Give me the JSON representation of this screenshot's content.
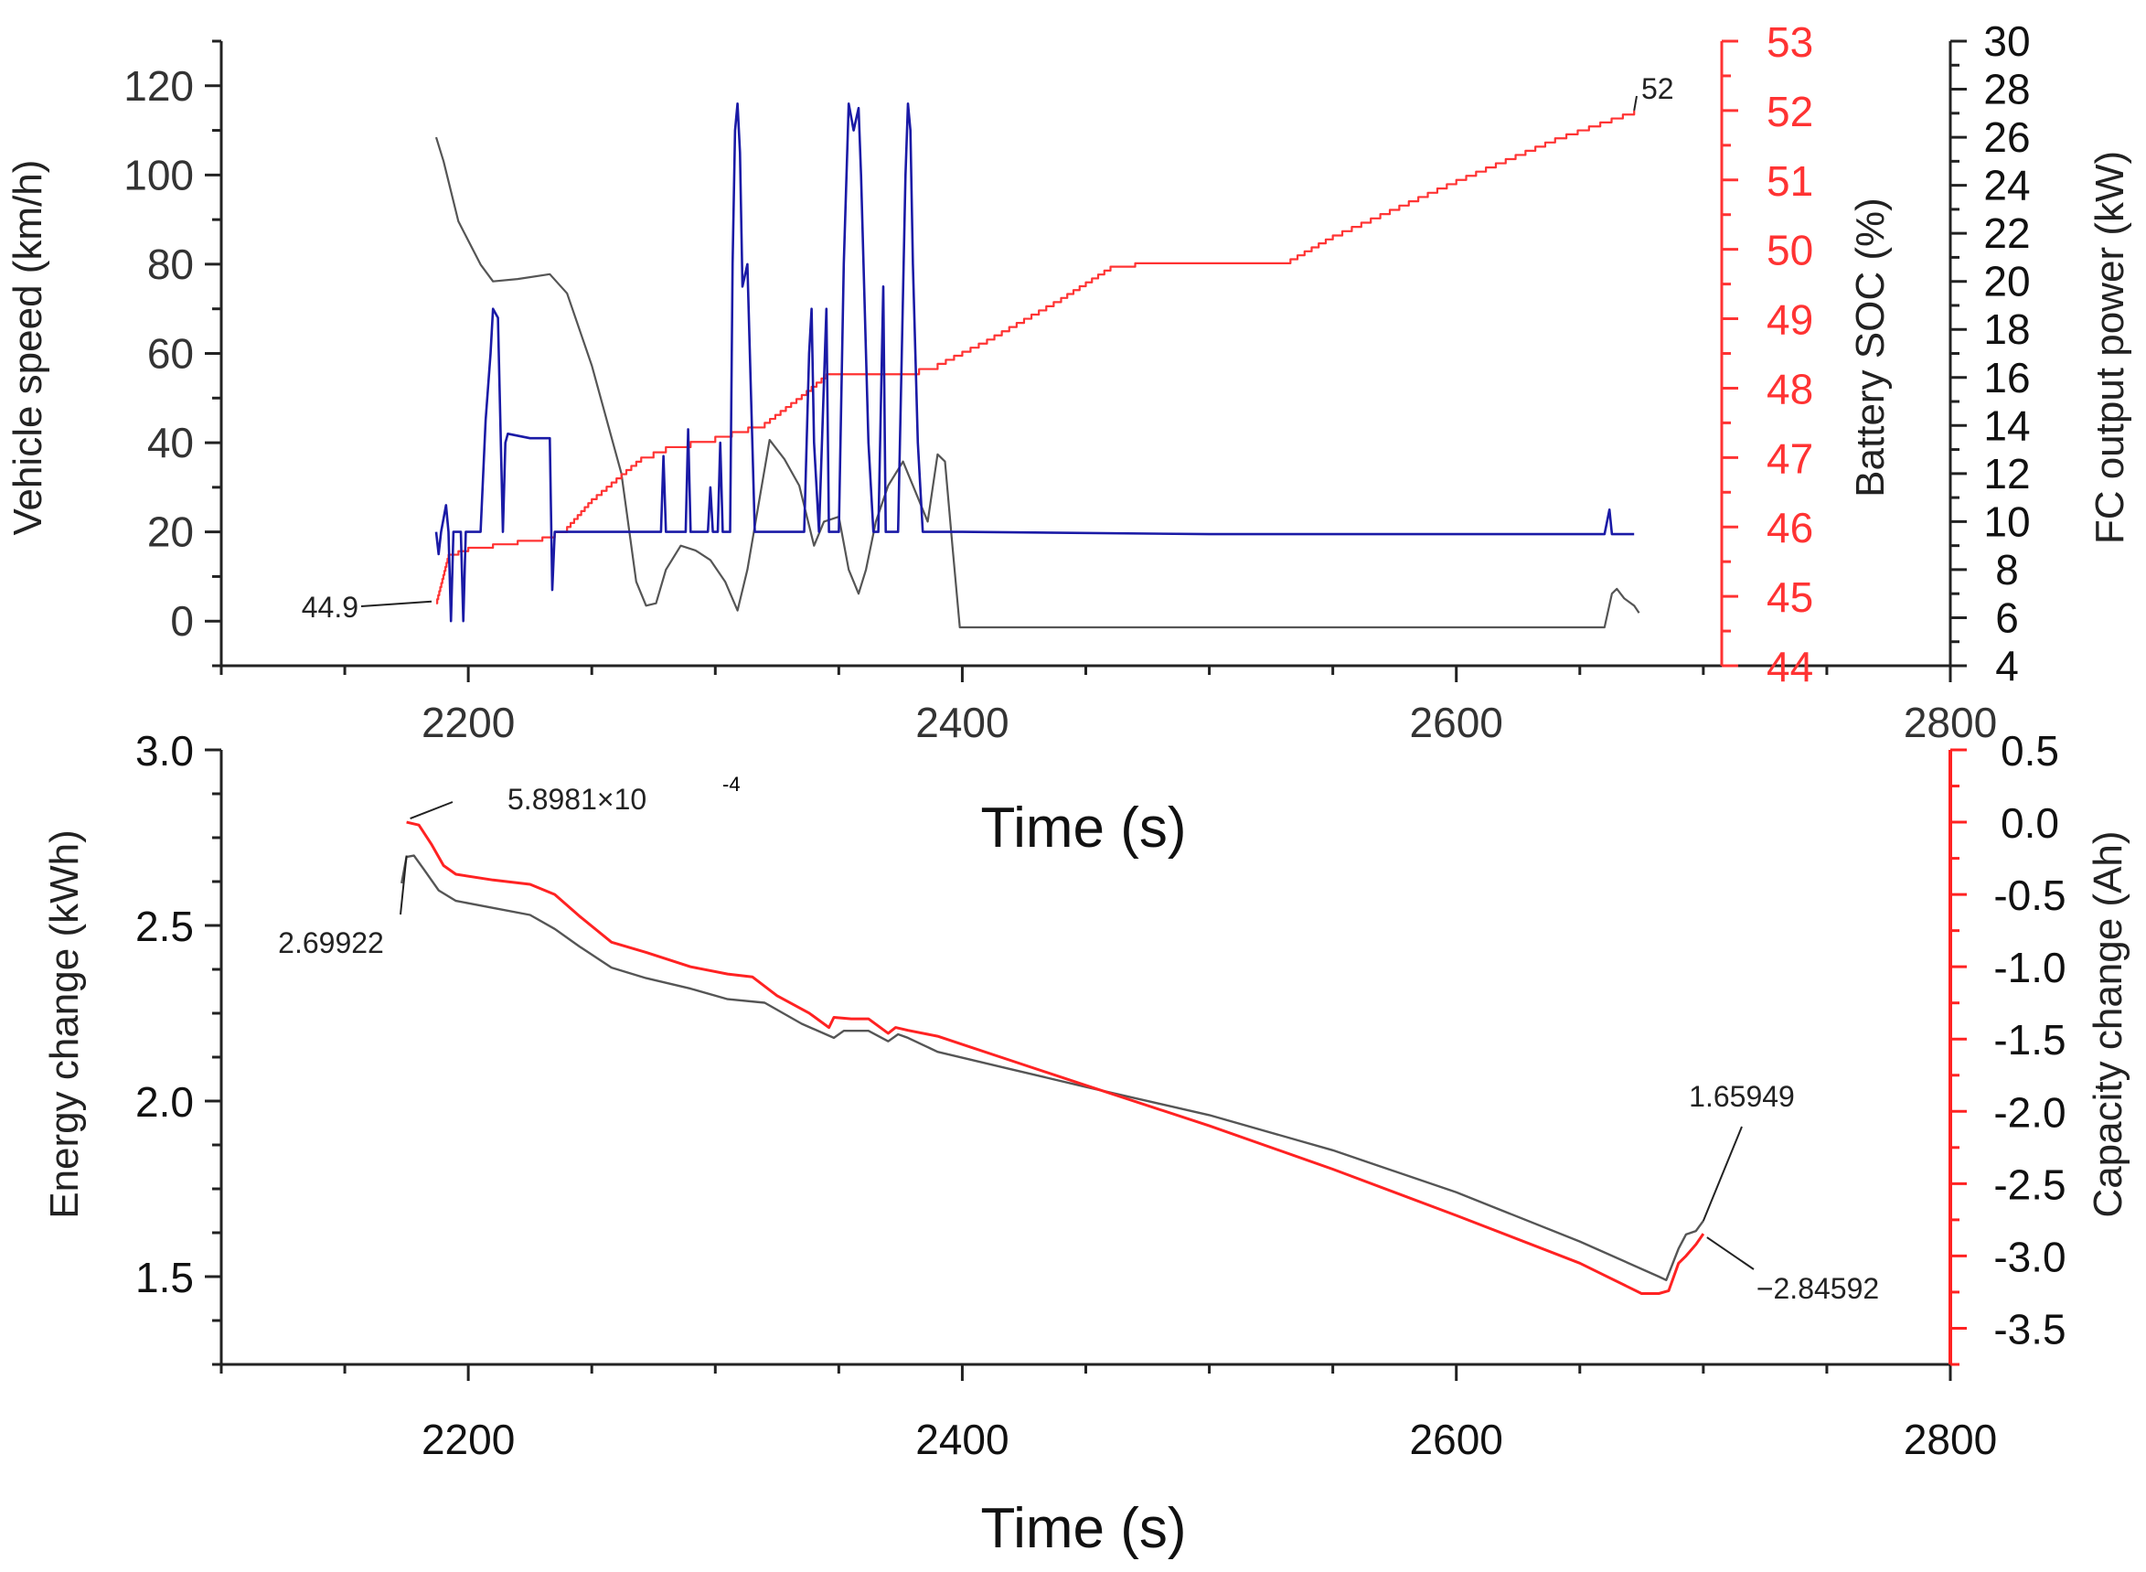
{
  "chart_data": [
    {
      "type": "line",
      "panel": "top",
      "title": "",
      "xlabel": "Time (s)",
      "xlim": [
        2100,
        2800
      ],
      "xticks": [
        2200,
        2400,
        2600,
        2800
      ],
      "axes": {
        "speed": {
          "label": "Vehicle speed (km/h)",
          "lim": [
            -10,
            130
          ],
          "ticks": [
            0,
            20,
            40,
            60,
            80,
            100,
            120
          ],
          "color": "#333333"
        },
        "soc": {
          "label": "Battery SOC (%)",
          "lim": [
            44,
            53
          ],
          "ticks": [
            44,
            45,
            46,
            47,
            48,
            49,
            50,
            51,
            52,
            53
          ],
          "color": "#ff3333"
        },
        "fc": {
          "label": "FC output power (kW)",
          "lim": [
            4,
            30
          ],
          "ticks": [
            4,
            6,
            8,
            10,
            12,
            14,
            16,
            18,
            20,
            22,
            24,
            26,
            28,
            30
          ],
          "color": "#222222"
        }
      },
      "series": [
        {
          "name": "FC output power",
          "axis": "fc",
          "color": "#555555",
          "points": [
            [
              2187,
              26
            ],
            [
              2190,
              25
            ],
            [
              2196,
              22.5
            ],
            [
              2205,
              20.7
            ],
            [
              2210,
              20
            ],
            [
              2220,
              20.1
            ],
            [
              2233,
              20.3
            ],
            [
              2240,
              19.5
            ],
            [
              2250,
              16.5
            ],
            [
              2262,
              12
            ],
            [
              2268,
              7.5
            ],
            [
              2272,
              6.5
            ],
            [
              2276,
              6.6
            ],
            [
              2280,
              8
            ],
            [
              2286,
              9
            ],
            [
              2292,
              8.8
            ],
            [
              2298,
              8.4
            ],
            [
              2304,
              7.5
            ],
            [
              2309,
              6.3
            ],
            [
              2313,
              8
            ],
            [
              2318,
              11
            ],
            [
              2322,
              13.4
            ],
            [
              2328,
              12.6
            ],
            [
              2334,
              11.5
            ],
            [
              2340,
              9
            ],
            [
              2344,
              10
            ],
            [
              2350,
              10.2
            ],
            [
              2354,
              8
            ],
            [
              2358,
              7
            ],
            [
              2361,
              8
            ],
            [
              2365,
              10
            ],
            [
              2370,
              11.5
            ],
            [
              2376,
              12.5
            ],
            [
              2382,
              11
            ],
            [
              2386,
              10
            ],
            [
              2390,
              12.8
            ],
            [
              2393,
              12.5
            ],
            [
              2396,
              9
            ],
            [
              2399,
              5.6
            ],
            [
              2500,
              5.6
            ],
            [
              2600,
              5.6
            ],
            [
              2660,
              5.6
            ],
            [
              2663,
              7
            ],
            [
              2665,
              7.2
            ],
            [
              2668,
              6.8
            ],
            [
              2672,
              6.5
            ],
            [
              2674,
              6.2
            ]
          ]
        },
        {
          "name": "Battery SOC",
          "axis": "soc",
          "color": "#ff3333",
          "points": [
            [
              2187,
              44.9
            ],
            [
              2192,
              45.6
            ],
            [
              2200,
              45.7
            ],
            [
              2210,
              45.75
            ],
            [
              2220,
              45.8
            ],
            [
              2230,
              45.85
            ],
            [
              2240,
              46
            ],
            [
              2250,
              46.4
            ],
            [
              2260,
              46.7
            ],
            [
              2270,
              47
            ],
            [
              2280,
              47.15
            ],
            [
              2300,
              47.3
            ],
            [
              2320,
              47.5
            ],
            [
              2335,
              47.9
            ],
            [
              2345,
              48.2
            ],
            [
              2360,
              48.2
            ],
            [
              2375,
              48.2
            ],
            [
              2390,
              48.35
            ],
            [
              2410,
              48.7
            ],
            [
              2440,
              49.3
            ],
            [
              2460,
              49.75
            ],
            [
              2470,
              49.8
            ],
            [
              2500,
              49.8
            ],
            [
              2530,
              49.8
            ],
            [
              2550,
              50.2
            ],
            [
              2600,
              51
            ],
            [
              2640,
              51.6
            ],
            [
              2672,
              52
            ]
          ]
        },
        {
          "name": "Vehicle speed",
          "axis": "speed",
          "color": "#1a1aa6",
          "points": [
            [
              2187,
              20
            ],
            [
              2188,
              15
            ],
            [
              2189,
              20
            ],
            [
              2191,
              26
            ],
            [
              2192,
              20
            ],
            [
              2193,
              0
            ],
            [
              2194,
              20
            ],
            [
              2197,
              20
            ],
            [
              2198,
              0
            ],
            [
              2199,
              20
            ],
            [
              2205,
              20
            ],
            [
              2207,
              45
            ],
            [
              2209,
              60
            ],
            [
              2210,
              70
            ],
            [
              2212,
              68
            ],
            [
              2214,
              20
            ],
            [
              2215,
              40
            ],
            [
              2216,
              42
            ],
            [
              2225,
              41
            ],
            [
              2233,
              41
            ],
            [
              2234,
              7
            ],
            [
              2235,
              20
            ],
            [
              2270,
              20
            ],
            [
              2278,
              20
            ],
            [
              2279,
              37
            ],
            [
              2280,
              20
            ],
            [
              2288,
              20
            ],
            [
              2289,
              43
            ],
            [
              2290,
              20
            ],
            [
              2297,
              20
            ],
            [
              2298,
              30
            ],
            [
              2299,
              20
            ],
            [
              2301,
              20
            ],
            [
              2302,
              40
            ],
            [
              2303,
              20
            ],
            [
              2306,
              20
            ],
            [
              2307,
              80
            ],
            [
              2308,
              110
            ],
            [
              2309,
              116
            ],
            [
              2310,
              105
            ],
            [
              2311,
              75
            ],
            [
              2313,
              80
            ],
            [
              2314,
              60
            ],
            [
              2316,
              20
            ],
            [
              2336,
              20
            ],
            [
              2338,
              60
            ],
            [
              2339,
              70
            ],
            [
              2340,
              40
            ],
            [
              2342,
              20
            ],
            [
              2345,
              70
            ],
            [
              2346,
              20
            ],
            [
              2350,
              20
            ],
            [
              2352,
              80
            ],
            [
              2354,
              116
            ],
            [
              2356,
              110
            ],
            [
              2358,
              115
            ],
            [
              2359,
              100
            ],
            [
              2360,
              80
            ],
            [
              2361,
              60
            ],
            [
              2362,
              40
            ],
            [
              2364,
              20
            ],
            [
              2366,
              20
            ],
            [
              2368,
              75
            ],
            [
              2369,
              20
            ],
            [
              2374,
              20
            ],
            [
              2377,
              100
            ],
            [
              2378,
              116
            ],
            [
              2379,
              110
            ],
            [
              2380,
              80
            ],
            [
              2381,
              60
            ],
            [
              2382,
              40
            ],
            [
              2384,
              20
            ],
            [
              2400,
              20
            ],
            [
              2500,
              19.5
            ],
            [
              2600,
              19.5
            ],
            [
              2660,
              19.5
            ],
            [
              2662,
              25
            ],
            [
              2663,
              19.5
            ],
            [
              2672,
              19.5
            ]
          ]
        }
      ],
      "annotations": [
        {
          "text": "44.9",
          "at": [
            2187,
            44.9
          ],
          "axis": "soc"
        },
        {
          "text": "52",
          "at": [
            2672,
            52
          ],
          "axis": "soc"
        }
      ]
    },
    {
      "type": "line",
      "panel": "bottom",
      "title": "",
      "xlabel": "Time (s)",
      "xlim": [
        2100,
        2800
      ],
      "xticks": [
        2200,
        2400,
        2600,
        2800
      ],
      "axes": {
        "energy": {
          "label": "Energy change (kWh)",
          "lim": [
            1.25,
            3.0
          ],
          "ticks": [
            1.5,
            2.0,
            2.5,
            3.0
          ],
          "tick_labels": [
            "1.5",
            "2.0",
            "2.5",
            "3.0"
          ],
          "color": "#222222"
        },
        "capacity": {
          "label": "Capacity change (Ah)",
          "lim": [
            -3.75,
            0.5
          ],
          "ticks": [
            -3.5,
            -3.0,
            -2.5,
            -2.0,
            -1.5,
            -1.0,
            -0.5,
            0.0,
            0.5
          ],
          "tick_labels": [
            "-3.5",
            "-3.0",
            "-2.5",
            "-2.0",
            "-1.5",
            "-1.0",
            "-0.5",
            "0.0",
            "0.5"
          ],
          "color": "#ff2222"
        }
      },
      "series": [
        {
          "name": "Energy change",
          "axis": "energy",
          "color": "#555555",
          "points": [
            [
              2173,
              2.62
            ],
            [
              2175,
              2.695
            ],
            [
              2178,
              2.699
            ],
            [
              2182,
              2.66
            ],
            [
              2188,
              2.6
            ],
            [
              2195,
              2.57
            ],
            [
              2210,
              2.55
            ],
            [
              2225,
              2.53
            ],
            [
              2235,
              2.49
            ],
            [
              2245,
              2.44
            ],
            [
              2258,
              2.38
            ],
            [
              2272,
              2.35
            ],
            [
              2290,
              2.32
            ],
            [
              2305,
              2.29
            ],
            [
              2320,
              2.28
            ],
            [
              2335,
              2.22
            ],
            [
              2348,
              2.18
            ],
            [
              2352,
              2.2
            ],
            [
              2362,
              2.2
            ],
            [
              2370,
              2.17
            ],
            [
              2374,
              2.19
            ],
            [
              2378,
              2.18
            ],
            [
              2390,
              2.14
            ],
            [
              2420,
              2.09
            ],
            [
              2450,
              2.04
            ],
            [
              2500,
              1.96
            ],
            [
              2550,
              1.86
            ],
            [
              2600,
              1.74
            ],
            [
              2650,
              1.6
            ],
            [
              2682,
              1.5
            ],
            [
              2685,
              1.49
            ],
            [
              2690,
              1.58
            ],
            [
              2693,
              1.62
            ],
            [
              2697,
              1.63
            ],
            [
              2700,
              1.659
            ]
          ]
        },
        {
          "name": "Capacity change",
          "axis": "capacity",
          "color": "#ff2222",
          "points": [
            [
              2175,
              0
            ],
            [
              2180,
              -0.02
            ],
            [
              2185,
              -0.15
            ],
            [
              2190,
              -0.3
            ],
            [
              2195,
              -0.36
            ],
            [
              2210,
              -0.4
            ],
            [
              2225,
              -0.43
            ],
            [
              2235,
              -0.5
            ],
            [
              2245,
              -0.65
            ],
            [
              2258,
              -0.83
            ],
            [
              2272,
              -0.9
            ],
            [
              2290,
              -1.0
            ],
            [
              2305,
              -1.05
            ],
            [
              2315,
              -1.07
            ],
            [
              2325,
              -1.2
            ],
            [
              2338,
              -1.32
            ],
            [
              2346,
              -1.42
            ],
            [
              2348,
              -1.35
            ],
            [
              2355,
              -1.36
            ],
            [
              2362,
              -1.36
            ],
            [
              2370,
              -1.46
            ],
            [
              2373,
              -1.42
            ],
            [
              2378,
              -1.44
            ],
            [
              2390,
              -1.48
            ],
            [
              2420,
              -1.65
            ],
            [
              2450,
              -1.82
            ],
            [
              2500,
              -2.1
            ],
            [
              2550,
              -2.4
            ],
            [
              2600,
              -2.72
            ],
            [
              2650,
              -3.05
            ],
            [
              2675,
              -3.26
            ],
            [
              2682,
              -3.26
            ],
            [
              2686,
              -3.24
            ],
            [
              2690,
              -3.05
            ],
            [
              2693,
              -3.0
            ],
            [
              2697,
              -2.92
            ],
            [
              2700,
              -2.846
            ]
          ]
        }
      ],
      "annotations": [
        {
          "text": "5.8981×10",
          "superscript": "-4",
          "at": [
            2175,
            0
          ],
          "axis": "capacity"
        },
        {
          "text": "2.69922",
          "at": [
            2175,
            2.699
          ],
          "axis": "energy"
        },
        {
          "text": "1.65949",
          "at": [
            2700,
            1.659
          ],
          "axis": "energy"
        },
        {
          "text": "−2.84592",
          "at": [
            2700,
            -2.846
          ],
          "axis": "capacity"
        }
      ]
    }
  ]
}
